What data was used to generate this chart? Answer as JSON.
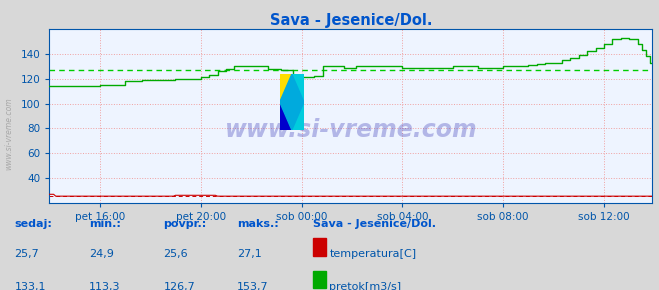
{
  "title": "Sava - Jesenice/Dol.",
  "bg_color": "#d8d8d8",
  "plot_bg_color": "#eef4ff",
  "grid_color": "#f0a0a0",
  "title_color": "#0055cc",
  "axis_color": "#0055aa",
  "tick_color": "#0055aa",
  "watermark": "www.si-vreme.com",
  "ylim": [
    20,
    160
  ],
  "yticks": [
    40,
    60,
    80,
    100,
    120,
    140
  ],
  "xtick_labels": [
    "pet 16:00",
    "pet 20:00",
    "sob 00:00",
    "sob 04:00",
    "sob 08:00",
    "sob 12:00"
  ],
  "n_points": 288,
  "temp_color": "#cc0000",
  "flow_color": "#00aa00",
  "avg_flow_color": "#00cc00",
  "avg_temp_color": "#cc0000",
  "avg_flow": 126.7,
  "avg_temp": 25.6,
  "legend_title": "Sava - Jesenice/Dol.",
  "legend_title_color": "#0055cc",
  "legend_color": "#0055aa",
  "footer_label_color": "#0055cc",
  "footer_value_color": "#0055aa",
  "sedaj_temp": 25.7,
  "min_temp": 24.9,
  "povpr_temp": 25.6,
  "maks_temp": 27.1,
  "sedaj_flow": 133.1,
  "min_flow": 113.3,
  "povpr_flow": 126.7,
  "maks_flow": 153.7
}
